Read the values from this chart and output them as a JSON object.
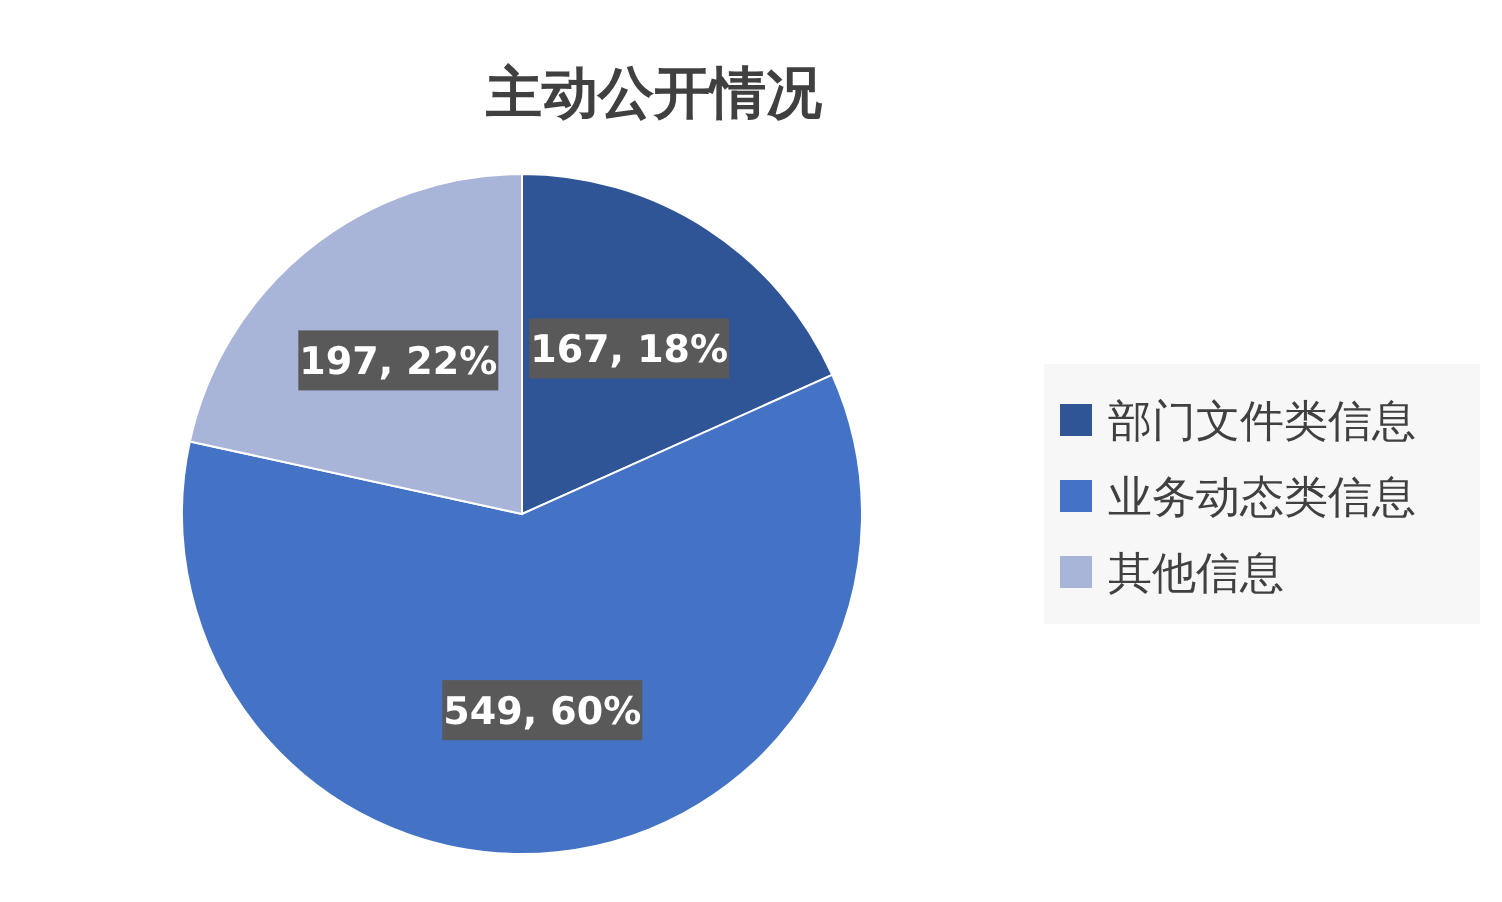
{
  "chart_data": {
    "type": "pie",
    "title": "主动公开情况",
    "categories": [
      "部门文件类信息",
      "业务动态类信息",
      "其他信息"
    ],
    "values": [
      167,
      549,
      197
    ],
    "value_labels": [
      "167, 18%",
      "549, 60%",
      "197, 22%"
    ],
    "colors": [
      "#2f5597",
      "#4472c4",
      "#a9b4d9"
    ],
    "legend": "right"
  }
}
